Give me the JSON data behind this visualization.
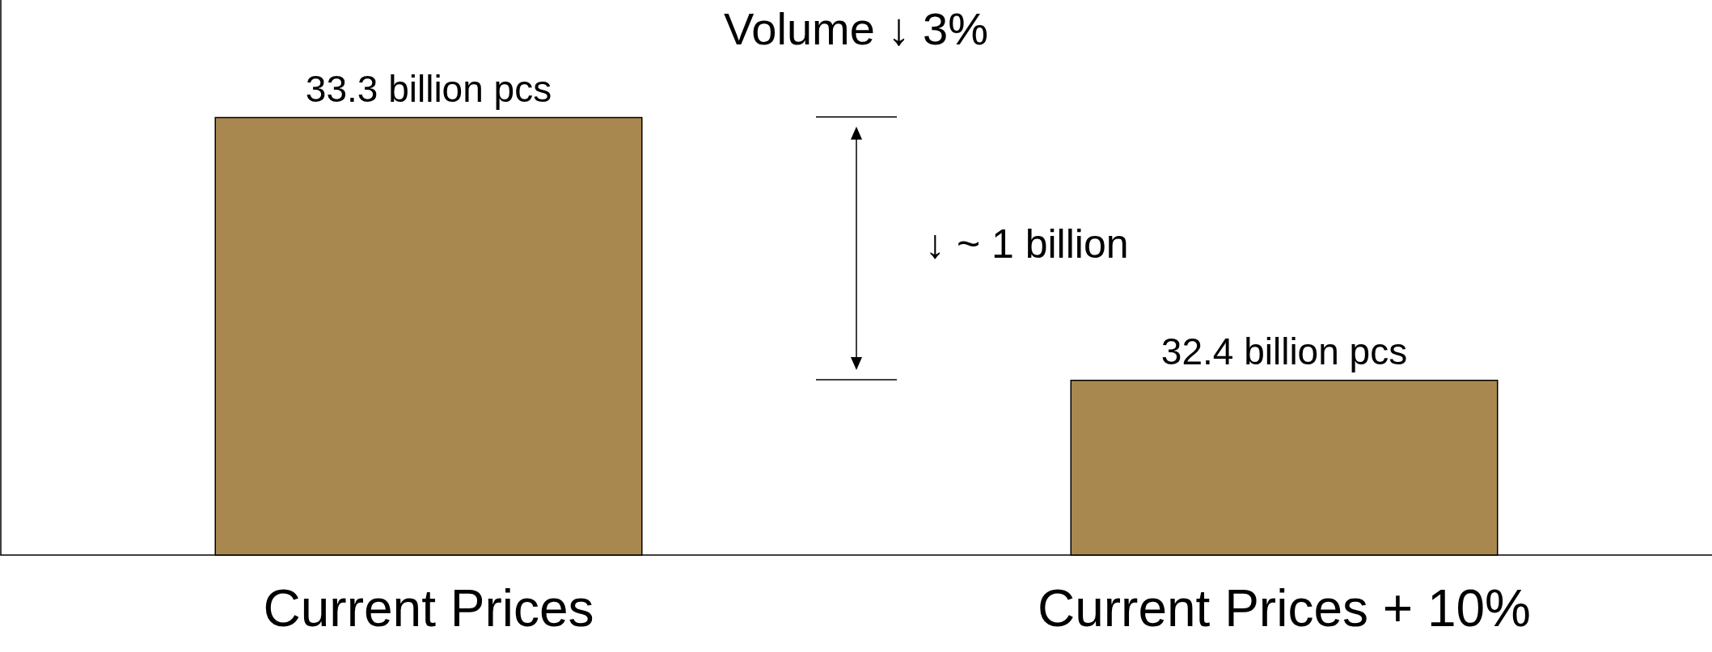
{
  "chart_data": {
    "type": "bar",
    "title": "Volume ↓ 3%",
    "categories": [
      "Current Prices",
      "Current Prices + 10%"
    ],
    "values": [
      33.3,
      32.4
    ],
    "color": "#a8884f",
    "value_labels": [
      "33.3 billion pcs",
      "32.4 billion pcs"
    ],
    "annotations": [
      "↓ ~ 1 billion"
    ],
    "ylim": [
      31.8,
      33.7
    ],
    "grid": false
  }
}
